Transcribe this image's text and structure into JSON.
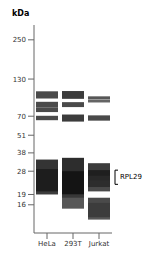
{
  "chart_data": {
    "type": "bar",
    "ylabel": "kDa",
    "log": "y",
    "categories": [
      "HeLa",
      "293T",
      "Jurkat"
    ],
    "ylim": [
      10,
      320
    ],
    "yticks": [
      250,
      130,
      70,
      51,
      38,
      28,
      19,
      16
    ],
    "bands": [
      {
        "category": "HeLa",
        "low": 94,
        "high": 106,
        "color": "#2a2a2a"
      },
      {
        "category": "HeLa",
        "low": 81,
        "high": 89,
        "color": "#2a2a2a"
      },
      {
        "category": "HeLa",
        "low": 75,
        "high": 81,
        "color": "#2a2a2a"
      },
      {
        "category": "HeLa",
        "low": 65.5,
        "high": 70.5,
        "color": "#2a2a2a"
      },
      {
        "category": "HeLa",
        "low": 20,
        "high": 34,
        "color": "#111111"
      },
      {
        "category": "HeLa",
        "low": 19,
        "high": 29,
        "color": "#1a1a1a"
      },
      {
        "category": "293T",
        "low": 93.5,
        "high": 106.5,
        "color": "#1a1a1a"
      },
      {
        "category": "293T",
        "low": 81.5,
        "high": 88.5,
        "color": "#2a2a2a"
      },
      {
        "category": "293T",
        "low": 64,
        "high": 72,
        "color": "#1a1a1a"
      },
      {
        "category": "293T",
        "low": 19,
        "high": 35,
        "color": "#080808"
      },
      {
        "category": "293T",
        "low": 18,
        "high": 28,
        "color": "#111111"
      },
      {
        "category": "293T",
        "low": 15,
        "high": 19,
        "color": "#3a3a3a"
      },
      {
        "category": "Jurkat",
        "low": 92.5,
        "high": 97.5,
        "color": "#3a3a3a"
      },
      {
        "category": "Jurkat",
        "low": 88,
        "high": 92,
        "color": "#4a4a4a"
      },
      {
        "category": "Jurkat",
        "low": 65,
        "high": 71,
        "color": "#2a2a2a"
      },
      {
        "category": "Jurkat",
        "low": 24,
        "high": 32,
        "color": "#1a1a1a"
      },
      {
        "category": "Jurkat",
        "low": 21.5,
        "high": 28.5,
        "color": "#1a1a1a"
      },
      {
        "category": "Jurkat",
        "low": 20,
        "high": 26,
        "color": "#2a2a2a"
      },
      {
        "category": "Jurkat",
        "low": 13,
        "high": 18,
        "color": "#2a2a2a"
      },
      {
        "category": "Jurkat",
        "low": 12.5,
        "high": 16.5,
        "color": "#3a3a3a"
      }
    ],
    "annotations": [
      {
        "text": "RPL29",
        "y": [
          22.5,
          28.5
        ]
      }
    ]
  }
}
